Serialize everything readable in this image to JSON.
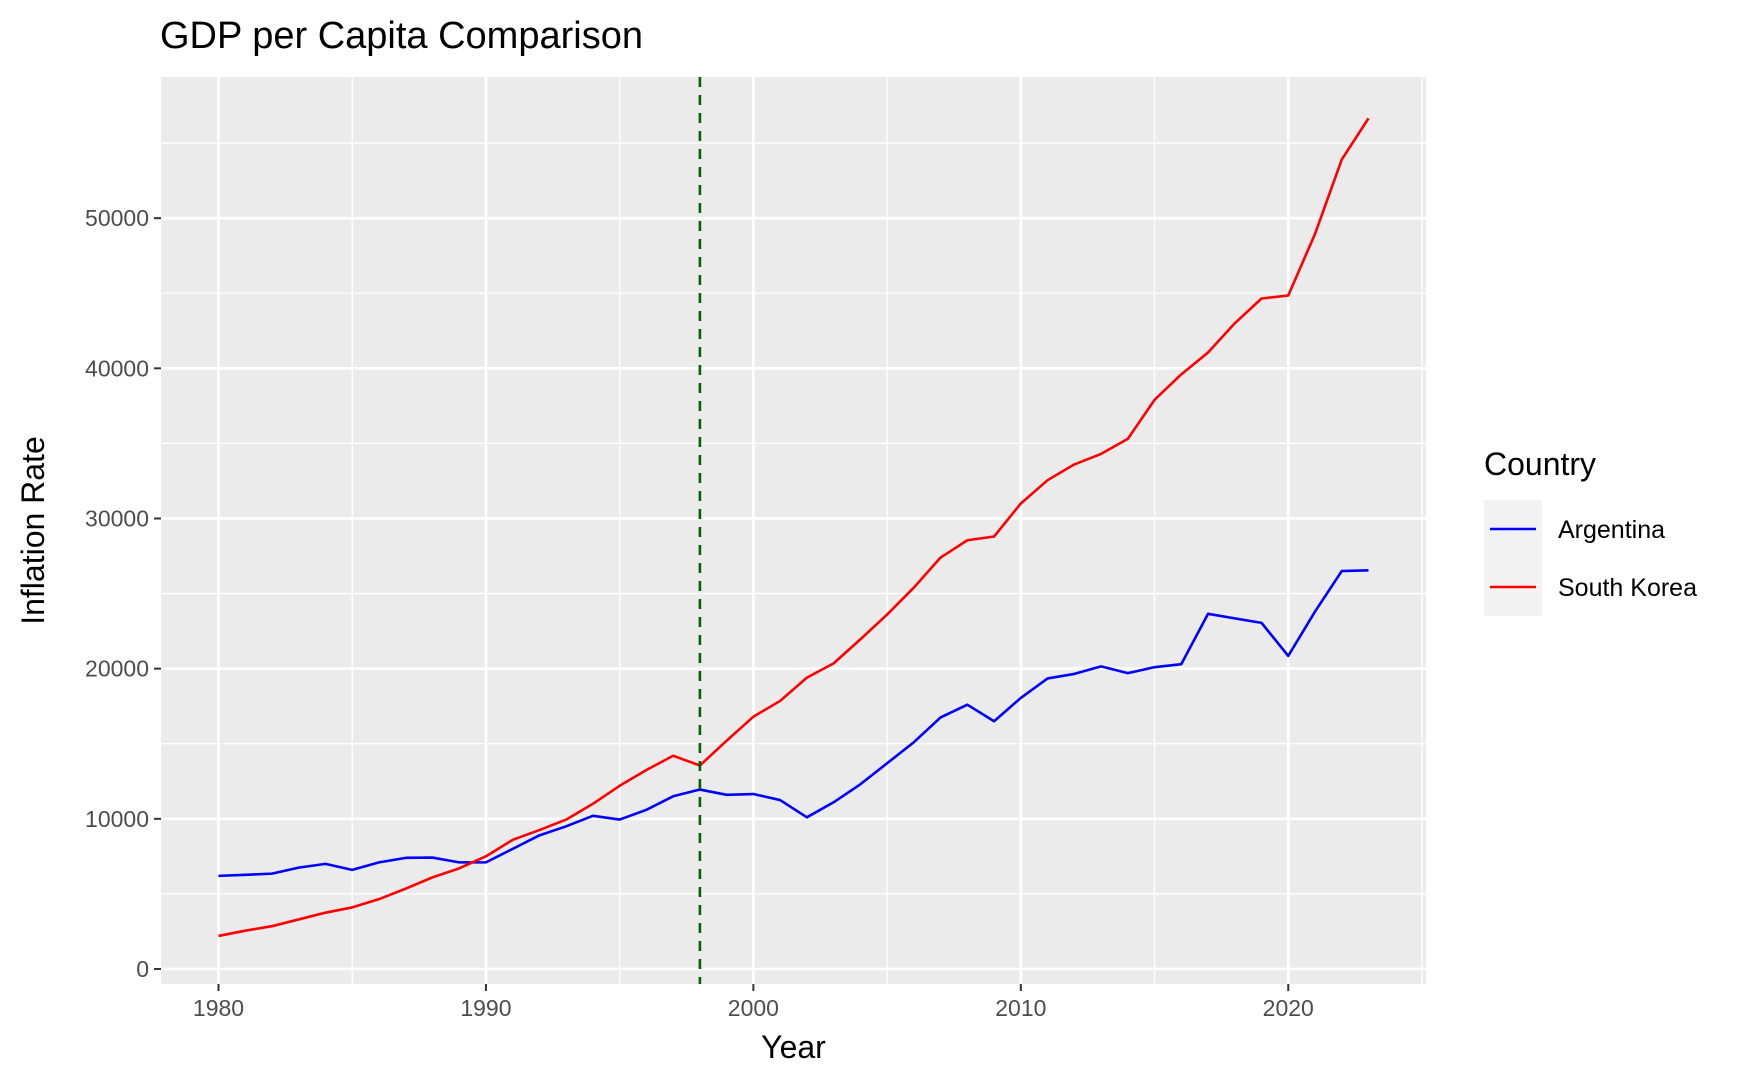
{
  "chart_data": {
    "type": "line",
    "title": "GDP per Capita Comparison",
    "xlabel": "Year",
    "ylabel": "Inflation Rate",
    "xlim": [
      1977.85,
      2025.15
    ],
    "ylim": [
      -1000,
      59400
    ],
    "x_ticks": [
      1980,
      1990,
      2000,
      2010,
      2020
    ],
    "x_tick_labels": [
      "1980",
      "1990",
      "2000",
      "2010",
      "2020"
    ],
    "y_ticks": [
      0,
      10000,
      20000,
      30000,
      40000,
      50000
    ],
    "y_tick_labels": [
      "0",
      "10000",
      "20000",
      "30000",
      "40000",
      "50000"
    ],
    "grid": true,
    "legend": {
      "title": "Country",
      "placement": "right"
    },
    "vline": {
      "x": 1998,
      "style": "dashed",
      "color": "#006400"
    },
    "x": [
      1980,
      1981,
      1982,
      1983,
      1984,
      1985,
      1986,
      1987,
      1988,
      1989,
      1990,
      1991,
      1992,
      1993,
      1994,
      1995,
      1996,
      1997,
      1998,
      1999,
      2000,
      2001,
      2002,
      2003,
      2004,
      2005,
      2006,
      2007,
      2008,
      2009,
      2010,
      2011,
      2012,
      2013,
      2014,
      2015,
      2016,
      2017,
      2018,
      2019,
      2020,
      2021,
      2022,
      2023
    ],
    "series": [
      {
        "name": "Argentina",
        "color": "#0000ff",
        "values": [
          6200,
          6270,
          6350,
          6750,
          7000,
          6600,
          7100,
          7400,
          7420,
          7100,
          7100,
          8000,
          8900,
          9500,
          10200,
          9950,
          10600,
          11500,
          11950,
          11600,
          11650,
          11250,
          10100,
          11100,
          12300,
          13700,
          15100,
          16750,
          17600,
          16500,
          18050,
          19350,
          19650,
          20150,
          19700,
          20100,
          20300,
          23650,
          23350,
          23050,
          20850,
          23800,
          26500,
          26550
        ]
      },
      {
        "name": "South Korea",
        "color": "#ff0000",
        "values": [
          2200,
          2550,
          2850,
          3300,
          3750,
          4100,
          4650,
          5350,
          6100,
          6700,
          7500,
          8600,
          9250,
          9950,
          11000,
          12200,
          13250,
          14200,
          13550,
          15200,
          16800,
          17850,
          19400,
          20350,
          21950,
          23600,
          25400,
          27400,
          28550,
          28800,
          31000,
          32550,
          33600,
          34300,
          35300,
          37900,
          39600,
          41050,
          43000,
          44650,
          44850,
          48950,
          53900,
          56650
        ]
      }
    ]
  }
}
